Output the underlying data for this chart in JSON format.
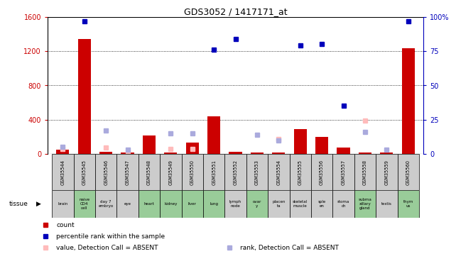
{
  "title": "GDS3052 / 1417171_at",
  "samples": [
    "GSM35544",
    "GSM35545",
    "GSM35546",
    "GSM35547",
    "GSM35548",
    "GSM35549",
    "GSM35550",
    "GSM35551",
    "GSM35552",
    "GSM35553",
    "GSM35554",
    "GSM35555",
    "GSM35556",
    "GSM35557",
    "GSM35558",
    "GSM35559",
    "GSM35560"
  ],
  "tissues": [
    "brain",
    "naive\nCD4\ncell",
    "day 7\nembryо",
    "eye",
    "heart",
    "kidney",
    "liver",
    "lung",
    "lymph\nnode",
    "ovаr\ny",
    "placen\nta",
    "skeletal\nmuscle",
    "sple\nen",
    "stoma\nch",
    "subma\nxillary\ngland",
    "testis",
    "thym\nus"
  ],
  "tissue_green": [
    false,
    true,
    false,
    false,
    true,
    true,
    true,
    true,
    false,
    true,
    false,
    false,
    false,
    false,
    true,
    false,
    true
  ],
  "count": [
    50,
    1340,
    25,
    15,
    215,
    15,
    130,
    440,
    25,
    15,
    15,
    285,
    195,
    75,
    15,
    15,
    1230
  ],
  "rank_percent": [
    null,
    97,
    null,
    null,
    null,
    null,
    null,
    76,
    84,
    null,
    null,
    79,
    80,
    35,
    null,
    null,
    97
  ],
  "rank_absent": [
    5,
    null,
    17,
    3,
    null,
    15,
    15,
    null,
    null,
    14,
    10,
    null,
    null,
    null,
    16,
    3,
    null
  ],
  "value_absent": [
    55,
    null,
    75,
    15,
    null,
    60,
    60,
    null,
    null,
    null,
    170,
    null,
    null,
    null,
    385,
    null,
    null
  ],
  "ylim_left": [
    0,
    1600
  ],
  "ylim_right": [
    0,
    100
  ],
  "yticks_left": [
    0,
    400,
    800,
    1200,
    1600
  ],
  "yticks_right": [
    0,
    25,
    50,
    75,
    100
  ],
  "count_color": "#cc0000",
  "rank_color": "#0000bb",
  "absent_value_color": "#ffbbbb",
  "absent_rank_color": "#aaaadd",
  "bg_color": "#ffffff",
  "label_bg_green": "#99cc99",
  "label_bg_gray": "#cccccc",
  "legend_items": [
    "count",
    "percentile rank within the sample",
    "value, Detection Call = ABSENT",
    "rank, Detection Call = ABSENT"
  ]
}
